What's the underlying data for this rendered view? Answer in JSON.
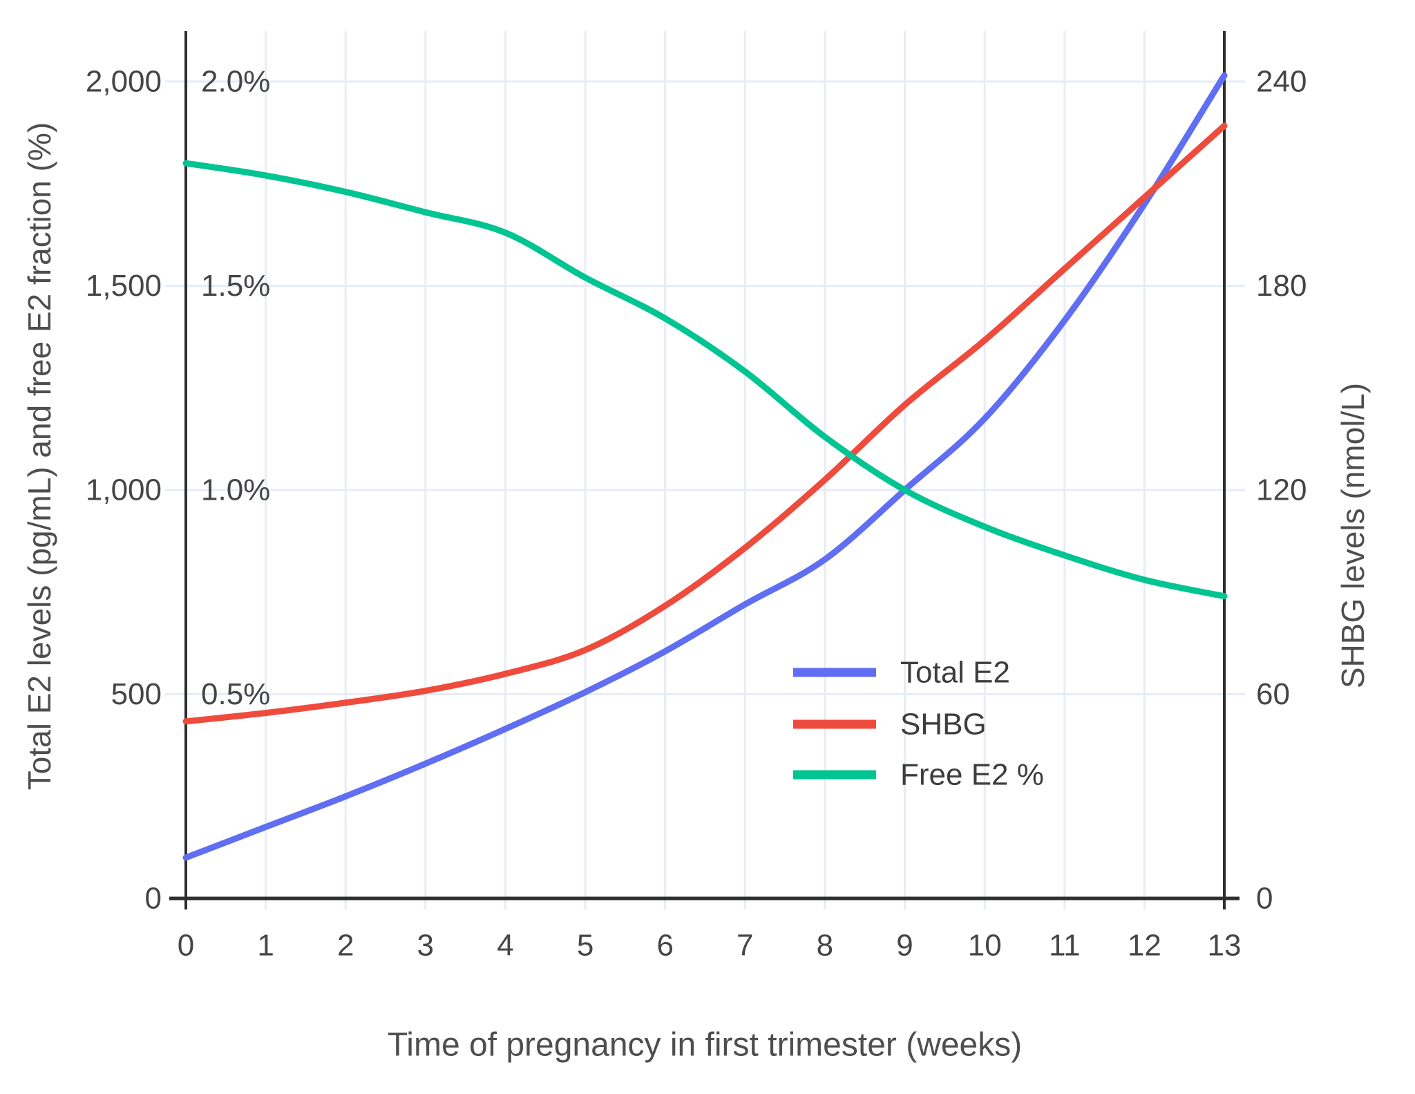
{
  "chart_data": {
    "type": "line",
    "title": "",
    "xlabel": "Time of pregnancy in first trimester (weeks)",
    "x": [
      0,
      1,
      2,
      3,
      4,
      5,
      6,
      7,
      8,
      9,
      10,
      11,
      12,
      13
    ],
    "x_tick_labels": [
      "0",
      "1",
      "2",
      "3",
      "4",
      "5",
      "6",
      "7",
      "8",
      "9",
      "10",
      "11",
      "12",
      "13"
    ],
    "x_range": [
      0,
      13
    ],
    "grid": true,
    "left_axis": {
      "label": "Total E2 levels (pg/mL) and free E2 fraction (%)",
      "tick_values": [
        0,
        500,
        1000,
        1500,
        2000
      ],
      "tick_labels": [
        "0",
        "500",
        "1,000",
        "1,500",
        "2,000"
      ],
      "range_top_value": 2000,
      "percent_tick_values": [
        0.5,
        1.0,
        1.5,
        2.0
      ],
      "percent_tick_labels": [
        "0.5%",
        "1.0%",
        "1.5%",
        "2.0%"
      ]
    },
    "right_axis": {
      "label": "SHBG levels (nmol/L)",
      "tick_values": [
        0,
        60,
        120,
        180,
        240
      ],
      "tick_labels": [
        "0",
        "60",
        "120",
        "180",
        "240"
      ]
    },
    "series": [
      {
        "name": "Total E2",
        "axis": "left",
        "unit": "pg/mL",
        "color": "#5F6EF2",
        "values": [
          100,
          175,
          250,
          330,
          415,
          505,
          605,
          720,
          830,
          1000,
          1175,
          1415,
          1700,
          2015
        ]
      },
      {
        "name": "SHBG",
        "axis": "right",
        "unit": "nmol/L",
        "color": "#EF4B3D",
        "values": [
          52,
          54.5,
          57.5,
          61,
          66,
          73,
          86,
          103,
          123,
          145,
          164,
          185,
          206,
          227
        ]
      },
      {
        "name": "Free E2 %",
        "axis": "percent",
        "unit": "%",
        "color": "#00C491",
        "values": [
          1.8,
          1.77,
          1.73,
          1.68,
          1.63,
          1.52,
          1.42,
          1.29,
          1.13,
          1.0,
          0.91,
          0.84,
          0.78,
          0.74
        ]
      }
    ],
    "legend": {
      "position": "inside-right",
      "entries": [
        "Total E2",
        "SHBG",
        "Free E2 %"
      ]
    },
    "colors": {
      "gridline": "#E6ECF8",
      "axis_line": "#2E2E2E",
      "tick_text": "#454545",
      "title_text": "#4E4E4E",
      "background": "#FFFFFF"
    }
  }
}
